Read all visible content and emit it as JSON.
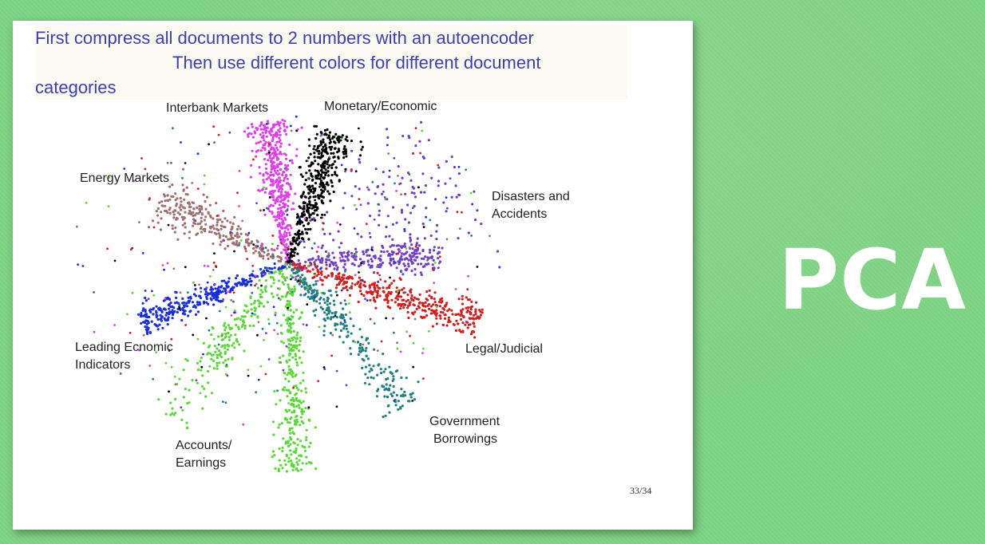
{
  "caption": {
    "line1": "First compress all documents to 2 numbers with an autoencoder",
    "line2": "Then use different colors for different document",
    "line3": "categories"
  },
  "side_title": "PCA",
  "page_number": "33/34",
  "chart_data": {
    "type": "scatter",
    "title": "",
    "xlabel": "",
    "ylabel": "",
    "grid": false,
    "axes_visible": false,
    "series": [
      {
        "name": "Interbank Markets",
        "color": "#e040e8"
      },
      {
        "name": "Monetary/Economic",
        "color": "#000000"
      },
      {
        "name": "Energy Markets",
        "color": "#a07070"
      },
      {
        "name": "Disasters and Accidents",
        "color": "#7040c0"
      },
      {
        "name": "Leading Ecnomic Indicators",
        "color": "#1a2fd8"
      },
      {
        "name": "Legal/Judicial",
        "color": "#d02020"
      },
      {
        "name": "Government Borrowings",
        "color": "#207f80"
      },
      {
        "name": "Accounts/ Earnings",
        "color": "#5cd83a"
      }
    ]
  }
}
